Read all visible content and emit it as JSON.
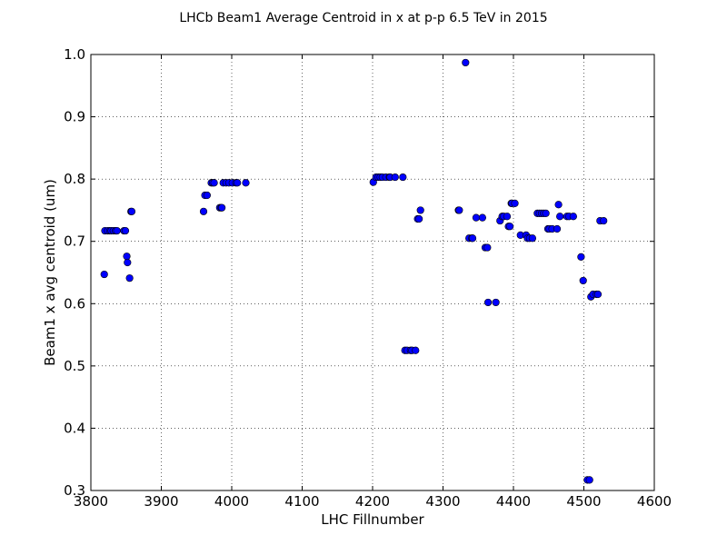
{
  "chart_data": {
    "type": "scatter",
    "title": "LHCb Beam1 Average Centroid in x at p-p 6.5 TeV in 2015",
    "xlabel": "LHC Fillnumber",
    "ylabel": "Beam1 x avg centroid (um)",
    "xlim": [
      3800,
      4600
    ],
    "ylim": [
      0.3,
      1.0
    ],
    "xticks": [
      "3800",
      "3900",
      "4000",
      "4100",
      "4200",
      "4300",
      "4400",
      "4500",
      "4600"
    ],
    "yticks": [
      "0.3",
      "0.4",
      "0.5",
      "0.6",
      "0.7",
      "0.8",
      "0.9",
      "1.0"
    ],
    "grid": true,
    "marker_color": "#0000ff",
    "series": [
      {
        "x": [
          3819,
          3820,
          3824,
          3827,
          3829,
          3832,
          3835,
          3837,
          3847,
          3849,
          3851,
          3852,
          3855,
          3857,
          3858,
          3960,
          3962,
          3965,
          3971,
          3973,
          3975,
          3983,
          3985,
          3986,
          3988,
          3992,
          3996,
          4001,
          4006,
          4008,
          4020,
          4201,
          4205,
          4208,
          4211,
          4214,
          4219,
          4224,
          4225,
          4232,
          4243,
          4246,
          4249,
          4254,
          4256,
          4261,
          4264,
          4266,
          4268,
          4322,
          4323,
          4332,
          4337,
          4341,
          4342,
          4347,
          4356,
          4360,
          4363,
          4364,
          4375,
          4381,
          4384,
          4386,
          4391,
          4393,
          4395,
          4397,
          4398,
          4402,
          4410,
          4418,
          4420,
          4423,
          4427,
          4434,
          4437,
          4440,
          4443,
          4446,
          4449,
          4451,
          4455,
          4462,
          4464,
          4466,
          4476,
          4479,
          4485,
          4496,
          4499,
          4505,
          4508,
          4510,
          4513,
          4518,
          4520,
          4523,
          4528
        ]
      },
      {
        "y": [
          0.647,
          0.717,
          0.717,
          0.717,
          0.717,
          0.717,
          0.717,
          0.717,
          0.717,
          0.717,
          0.676,
          0.666,
          0.641,
          0.748,
          0.748,
          0.748,
          0.774,
          0.774,
          0.794,
          0.794,
          0.794,
          0.754,
          0.754,
          0.754,
          0.794,
          0.794,
          0.794,
          0.794,
          0.794,
          0.794,
          0.794,
          0.795,
          0.803,
          0.803,
          0.803,
          0.803,
          0.803,
          0.803,
          0.803,
          0.803,
          0.803,
          0.525,
          0.525,
          0.525,
          0.525,
          0.525,
          0.736,
          0.736,
          0.75,
          0.75,
          0.75,
          0.987,
          0.705,
          0.705,
          0.705,
          0.738,
          0.738,
          0.69,
          0.69,
          0.602,
          0.602,
          0.733,
          0.74,
          0.74,
          0.74,
          0.724,
          0.724,
          0.761,
          0.761,
          0.761,
          0.71,
          0.71,
          0.705,
          0.705,
          0.705,
          0.745,
          0.745,
          0.745,
          0.745,
          0.745,
          0.72,
          0.72,
          0.72,
          0.72,
          0.759,
          0.74,
          0.74,
          0.74,
          0.74,
          0.675,
          0.637,
          0.317,
          0.317,
          0.611,
          0.615,
          0.615,
          0.615,
          0.733,
          0.733
        ]
      }
    ]
  }
}
